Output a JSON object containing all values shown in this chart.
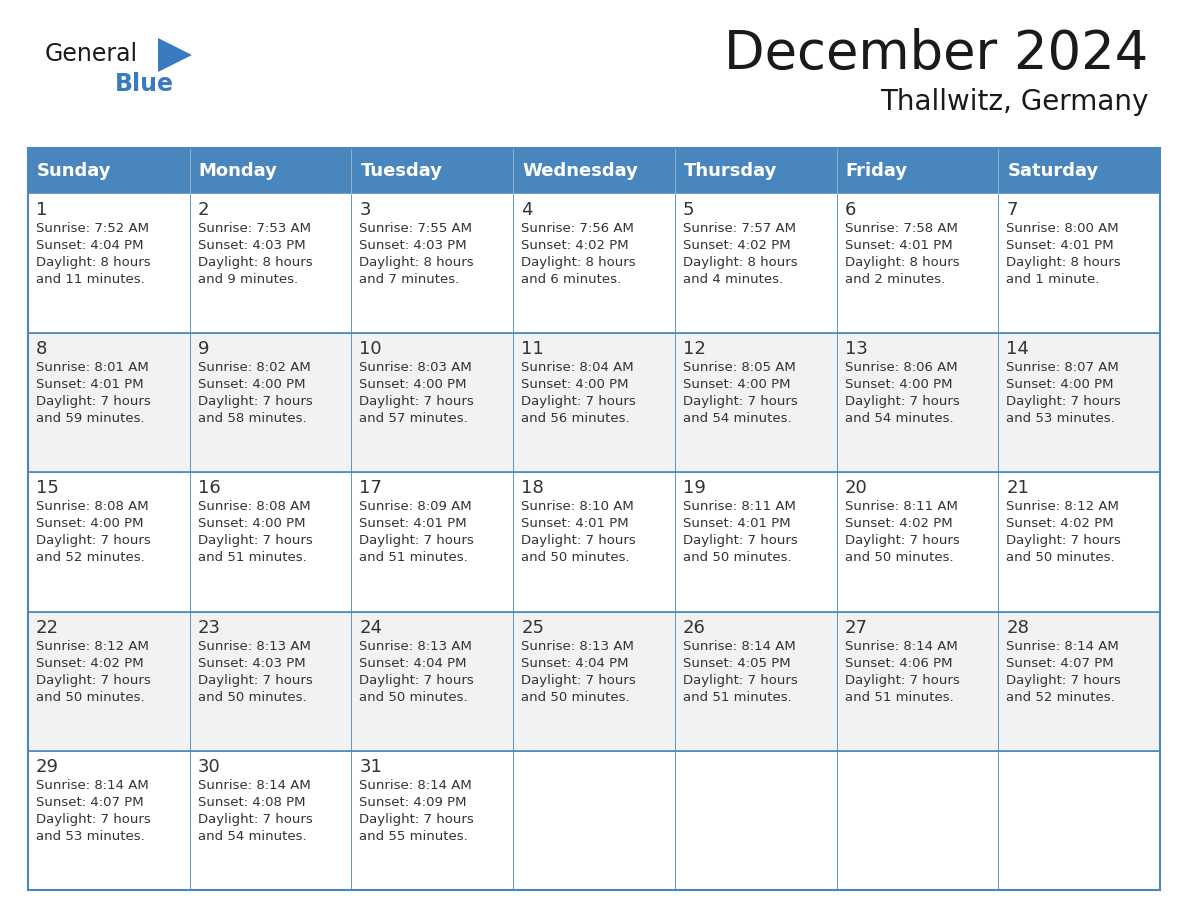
{
  "title": "December 2024",
  "subtitle": "Thallwitz, Germany",
  "header_color": "#4a86be",
  "header_text_color": "#ffffff",
  "cell_bg_color": "#ffffff",
  "alt_cell_bg_color": "#f2f2f2",
  "border_color": "#4a86be",
  "text_color": "#333333",
  "days_of_week": [
    "Sunday",
    "Monday",
    "Tuesday",
    "Wednesday",
    "Thursday",
    "Friday",
    "Saturday"
  ],
  "calendar_data": [
    [
      {
        "day": 1,
        "sunrise": "7:52 AM",
        "sunset": "4:04 PM",
        "daylight_line1": "Daylight: 8 hours",
        "daylight_line2": "and 11 minutes."
      },
      {
        "day": 2,
        "sunrise": "7:53 AM",
        "sunset": "4:03 PM",
        "daylight_line1": "Daylight: 8 hours",
        "daylight_line2": "and 9 minutes."
      },
      {
        "day": 3,
        "sunrise": "7:55 AM",
        "sunset": "4:03 PM",
        "daylight_line1": "Daylight: 8 hours",
        "daylight_line2": "and 7 minutes."
      },
      {
        "day": 4,
        "sunrise": "7:56 AM",
        "sunset": "4:02 PM",
        "daylight_line1": "Daylight: 8 hours",
        "daylight_line2": "and 6 minutes."
      },
      {
        "day": 5,
        "sunrise": "7:57 AM",
        "sunset": "4:02 PM",
        "daylight_line1": "Daylight: 8 hours",
        "daylight_line2": "and 4 minutes."
      },
      {
        "day": 6,
        "sunrise": "7:58 AM",
        "sunset": "4:01 PM",
        "daylight_line1": "Daylight: 8 hours",
        "daylight_line2": "and 2 minutes."
      },
      {
        "day": 7,
        "sunrise": "8:00 AM",
        "sunset": "4:01 PM",
        "daylight_line1": "Daylight: 8 hours",
        "daylight_line2": "and 1 minute."
      }
    ],
    [
      {
        "day": 8,
        "sunrise": "8:01 AM",
        "sunset": "4:01 PM",
        "daylight_line1": "Daylight: 7 hours",
        "daylight_line2": "and 59 minutes."
      },
      {
        "day": 9,
        "sunrise": "8:02 AM",
        "sunset": "4:00 PM",
        "daylight_line1": "Daylight: 7 hours",
        "daylight_line2": "and 58 minutes."
      },
      {
        "day": 10,
        "sunrise": "8:03 AM",
        "sunset": "4:00 PM",
        "daylight_line1": "Daylight: 7 hours",
        "daylight_line2": "and 57 minutes."
      },
      {
        "day": 11,
        "sunrise": "8:04 AM",
        "sunset": "4:00 PM",
        "daylight_line1": "Daylight: 7 hours",
        "daylight_line2": "and 56 minutes."
      },
      {
        "day": 12,
        "sunrise": "8:05 AM",
        "sunset": "4:00 PM",
        "daylight_line1": "Daylight: 7 hours",
        "daylight_line2": "and 54 minutes."
      },
      {
        "day": 13,
        "sunrise": "8:06 AM",
        "sunset": "4:00 PM",
        "daylight_line1": "Daylight: 7 hours",
        "daylight_line2": "and 54 minutes."
      },
      {
        "day": 14,
        "sunrise": "8:07 AM",
        "sunset": "4:00 PM",
        "daylight_line1": "Daylight: 7 hours",
        "daylight_line2": "and 53 minutes."
      }
    ],
    [
      {
        "day": 15,
        "sunrise": "8:08 AM",
        "sunset": "4:00 PM",
        "daylight_line1": "Daylight: 7 hours",
        "daylight_line2": "and 52 minutes."
      },
      {
        "day": 16,
        "sunrise": "8:08 AM",
        "sunset": "4:00 PM",
        "daylight_line1": "Daylight: 7 hours",
        "daylight_line2": "and 51 minutes."
      },
      {
        "day": 17,
        "sunrise": "8:09 AM",
        "sunset": "4:01 PM",
        "daylight_line1": "Daylight: 7 hours",
        "daylight_line2": "and 51 minutes."
      },
      {
        "day": 18,
        "sunrise": "8:10 AM",
        "sunset": "4:01 PM",
        "daylight_line1": "Daylight: 7 hours",
        "daylight_line2": "and 50 minutes."
      },
      {
        "day": 19,
        "sunrise": "8:11 AM",
        "sunset": "4:01 PM",
        "daylight_line1": "Daylight: 7 hours",
        "daylight_line2": "and 50 minutes."
      },
      {
        "day": 20,
        "sunrise": "8:11 AM",
        "sunset": "4:02 PM",
        "daylight_line1": "Daylight: 7 hours",
        "daylight_line2": "and 50 minutes."
      },
      {
        "day": 21,
        "sunrise": "8:12 AM",
        "sunset": "4:02 PM",
        "daylight_line1": "Daylight: 7 hours",
        "daylight_line2": "and 50 minutes."
      }
    ],
    [
      {
        "day": 22,
        "sunrise": "8:12 AM",
        "sunset": "4:02 PM",
        "daylight_line1": "Daylight: 7 hours",
        "daylight_line2": "and 50 minutes."
      },
      {
        "day": 23,
        "sunrise": "8:13 AM",
        "sunset": "4:03 PM",
        "daylight_line1": "Daylight: 7 hours",
        "daylight_line2": "and 50 minutes."
      },
      {
        "day": 24,
        "sunrise": "8:13 AM",
        "sunset": "4:04 PM",
        "daylight_line1": "Daylight: 7 hours",
        "daylight_line2": "and 50 minutes."
      },
      {
        "day": 25,
        "sunrise": "8:13 AM",
        "sunset": "4:04 PM",
        "daylight_line1": "Daylight: 7 hours",
        "daylight_line2": "and 50 minutes."
      },
      {
        "day": 26,
        "sunrise": "8:14 AM",
        "sunset": "4:05 PM",
        "daylight_line1": "Daylight: 7 hours",
        "daylight_line2": "and 51 minutes."
      },
      {
        "day": 27,
        "sunrise": "8:14 AM",
        "sunset": "4:06 PM",
        "daylight_line1": "Daylight: 7 hours",
        "daylight_line2": "and 51 minutes."
      },
      {
        "day": 28,
        "sunrise": "8:14 AM",
        "sunset": "4:07 PM",
        "daylight_line1": "Daylight: 7 hours",
        "daylight_line2": "and 52 minutes."
      }
    ],
    [
      {
        "day": 29,
        "sunrise": "8:14 AM",
        "sunset": "4:07 PM",
        "daylight_line1": "Daylight: 7 hours",
        "daylight_line2": "and 53 minutes."
      },
      {
        "day": 30,
        "sunrise": "8:14 AM",
        "sunset": "4:08 PM",
        "daylight_line1": "Daylight: 7 hours",
        "daylight_line2": "and 54 minutes."
      },
      {
        "day": 31,
        "sunrise": "8:14 AM",
        "sunset": "4:09 PM",
        "daylight_line1": "Daylight: 7 hours",
        "daylight_line2": "and 55 minutes."
      },
      null,
      null,
      null,
      null
    ]
  ],
  "logo_color_general": "#1a1a1a",
  "logo_color_blue": "#3a7abf",
  "logo_triangle_color": "#3a7abf",
  "title_fontsize": 38,
  "subtitle_fontsize": 20,
  "header_fontsize": 13,
  "day_num_fontsize": 13,
  "cell_text_fontsize": 9.5
}
